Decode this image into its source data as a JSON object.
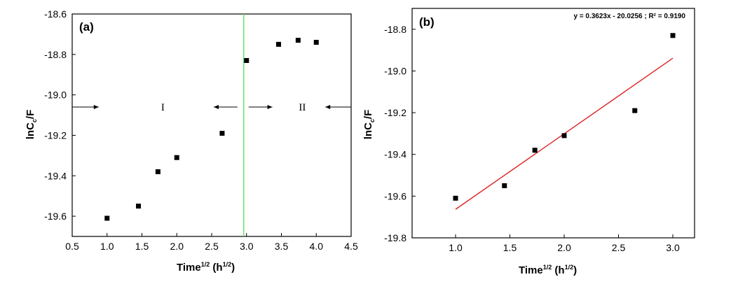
{
  "chart_data": [
    {
      "panel_label": "(a)",
      "type": "scatter",
      "xlabel": "Time",
      "xlabel_sup": "1/2",
      "xlabel_units_open": " (h",
      "xlabel_units_sup": "1/2",
      "xlabel_units_close": ")",
      "ylabel": "lnC",
      "ylabel_sub": "c",
      "ylabel_tail": "/F",
      "xlim": [
        0.5,
        4.5
      ],
      "ylim": [
        -19.7,
        -18.6
      ],
      "xticks": [
        "0.5",
        "1.0",
        "1.5",
        "2.0",
        "2.5",
        "3.0",
        "3.5",
        "4.0",
        "4.5"
      ],
      "yticks": [
        "-19.6",
        "-19.4",
        "-19.2",
        "-19.0",
        "-18.8",
        "-18.6"
      ],
      "points": [
        {
          "x": 1.0,
          "y": -19.61
        },
        {
          "x": 1.45,
          "y": -19.55
        },
        {
          "x": 1.73,
          "y": -19.38
        },
        {
          "x": 2.0,
          "y": -19.31
        },
        {
          "x": 2.65,
          "y": -19.19
        },
        {
          "x": 3.0,
          "y": -18.83
        },
        {
          "x": 3.46,
          "y": -18.75
        },
        {
          "x": 3.74,
          "y": -18.73
        },
        {
          "x": 4.0,
          "y": -18.74
        }
      ],
      "divider_x": 2.96,
      "divider_color": "#55dd55",
      "regions": [
        {
          "label": "I",
          "x": 1.8,
          "y": -19.06
        },
        {
          "label": "II",
          "x": 3.8,
          "y": -19.06
        }
      ]
    },
    {
      "panel_label": "(b)",
      "type": "scatter",
      "xlabel": "Time",
      "xlabel_sup": "1/2",
      "xlabel_units_open": " (h",
      "xlabel_units_sup": "1/2",
      "xlabel_units_close": ")",
      "ylabel": "lnC",
      "ylabel_sub": "c",
      "ylabel_tail": "/F",
      "xlim": [
        0.6,
        3.2
      ],
      "ylim": [
        -19.8,
        -18.7
      ],
      "xticks": [
        "1.0",
        "1.5",
        "2.0",
        "2.5",
        "3.0"
      ],
      "yticks": [
        "-19.8",
        "-19.6",
        "-19.4",
        "-19.2",
        "-19.0",
        "-18.8"
      ],
      "points": [
        {
          "x": 1.0,
          "y": -19.61
        },
        {
          "x": 1.45,
          "y": -19.55
        },
        {
          "x": 1.73,
          "y": -19.38
        },
        {
          "x": 2.0,
          "y": -19.31
        },
        {
          "x": 2.65,
          "y": -19.19
        },
        {
          "x": 3.0,
          "y": -18.83
        }
      ],
      "fit": {
        "slope": 0.3623,
        "intercept": -20.0256,
        "x_range": [
          1.0,
          3.0
        ],
        "color": "#dd2222"
      },
      "equation": "y = 0.3623x - 20.0256 ;  R² = 0.9190"
    }
  ]
}
